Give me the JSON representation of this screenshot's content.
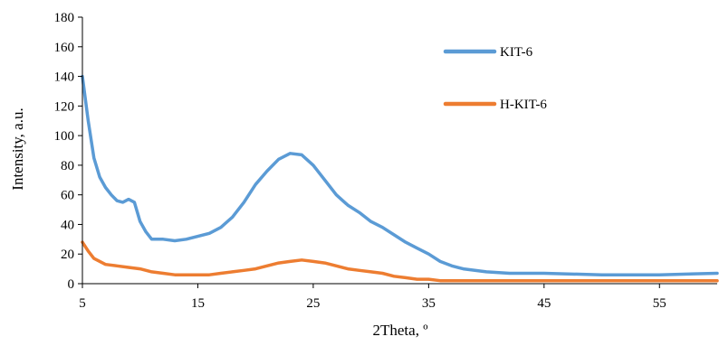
{
  "chart_data": {
    "type": "line",
    "title": "",
    "xlabel": "2Theta, º",
    "ylabel": "Intensity, a.u.",
    "xlim": [
      5,
      60
    ],
    "ylim": [
      0,
      180
    ],
    "xticks": [
      5,
      15,
      25,
      35,
      45,
      55
    ],
    "yticks": [
      0,
      20,
      40,
      60,
      80,
      100,
      120,
      140,
      160,
      180
    ],
    "grid": false,
    "legend_position": "right",
    "series": [
      {
        "name": "KIT-6",
        "color": "#5B9BD5",
        "x": [
          5,
          5.5,
          6,
          6.5,
          7,
          7.5,
          8,
          8.5,
          9,
          9.5,
          10,
          10.5,
          11,
          12,
          13,
          14,
          15,
          16,
          17,
          18,
          19,
          20,
          21,
          22,
          23,
          24,
          25,
          26,
          27,
          28,
          29,
          30,
          31,
          32,
          33,
          34,
          35,
          36,
          37,
          38,
          40,
          42,
          45,
          50,
          55,
          60
        ],
        "y": [
          140,
          110,
          85,
          72,
          65,
          60,
          56,
          55,
          57,
          55,
          42,
          35,
          30,
          30,
          29,
          30,
          32,
          34,
          38,
          45,
          55,
          67,
          76,
          84,
          88,
          87,
          80,
          70,
          60,
          53,
          48,
          42,
          38,
          33,
          28,
          24,
          20,
          15,
          12,
          10,
          8,
          7,
          7,
          6,
          6,
          7
        ]
      },
      {
        "name": "H-KIT-6",
        "color": "#ED7D31",
        "x": [
          5,
          5.5,
          6,
          7,
          8,
          9,
          10,
          11,
          12,
          13,
          14,
          15,
          16,
          17,
          18,
          19,
          20,
          21,
          22,
          23,
          24,
          25,
          26,
          27,
          28,
          29,
          30,
          31,
          32,
          33,
          34,
          35,
          36,
          38,
          40,
          45,
          50,
          55,
          60
        ],
        "y": [
          28,
          22,
          17,
          13,
          12,
          11,
          10,
          8,
          7,
          6,
          6,
          6,
          6,
          7,
          8,
          9,
          10,
          12,
          14,
          15,
          16,
          15,
          14,
          12,
          10,
          9,
          8,
          7,
          5,
          4,
          3,
          3,
          2,
          2,
          2,
          2,
          2,
          2,
          2
        ]
      }
    ]
  }
}
